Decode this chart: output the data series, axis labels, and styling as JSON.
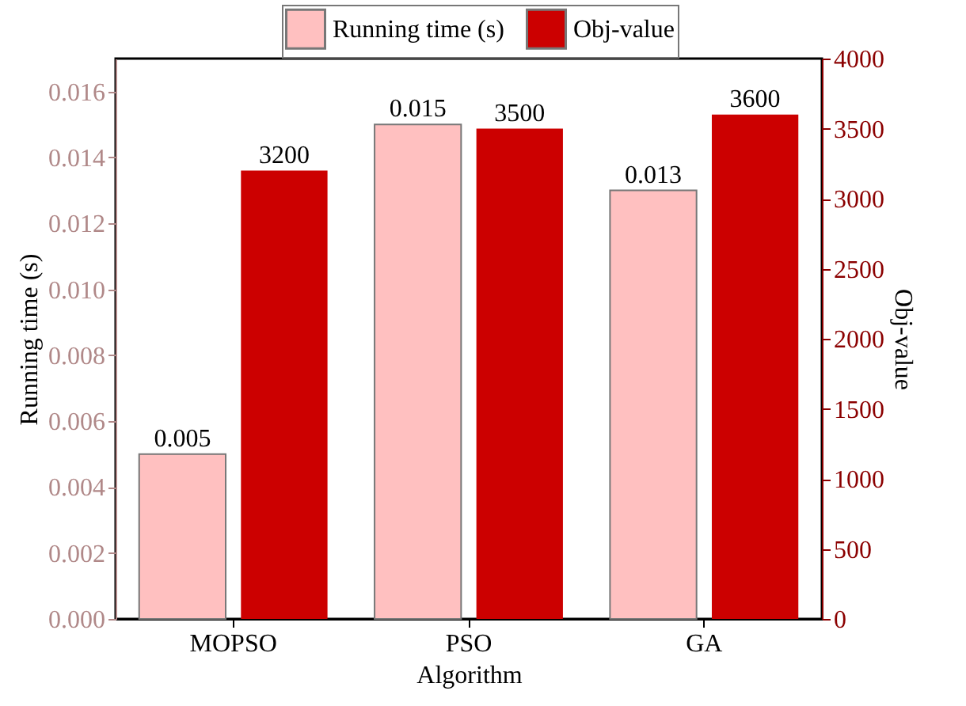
{
  "chart_data": {
    "type": "bar",
    "xlabel": "Algorithm",
    "ylabel": "Running time (s)",
    "y2label": "Obj-value",
    "categories": [
      "MOPSO",
      "PSO",
      "GA"
    ],
    "series": [
      {
        "name": "Running time (s)",
        "color": "#ffc0c0",
        "values": [
          0.005,
          0.015,
          0.013
        ]
      },
      {
        "name": "Obj-value",
        "color": "#cc0000",
        "values": [
          3200,
          3500,
          3600
        ],
        "axis": "y2"
      }
    ],
    "ylim": [
      0,
      0.017
    ],
    "yticks": [
      {
        "value": 0,
        "label": "0.000"
      },
      {
        "value": 0.002,
        "label": "0.002"
      },
      {
        "value": 0.004,
        "label": "0.004"
      },
      {
        "value": 0.006,
        "label": "0.006"
      },
      {
        "value": 0.008,
        "label": "0.008"
      },
      {
        "value": 0.01,
        "label": "0.010"
      },
      {
        "value": 0.012,
        "label": "0.012"
      },
      {
        "value": 0.014,
        "label": "0.014"
      },
      {
        "value": 0.016,
        "label": "0.016"
      }
    ],
    "y2lim": [
      0,
      4000
    ],
    "y2ticks": [
      0,
      500,
      1000,
      1500,
      2000,
      2500,
      3000,
      3500,
      4000
    ],
    "data_labels": true,
    "legend": "top"
  }
}
